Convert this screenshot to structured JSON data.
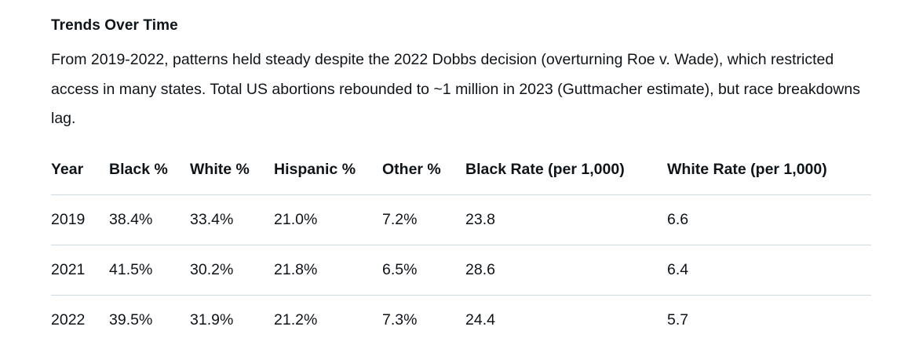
{
  "section": {
    "title": "Trends Over Time",
    "paragraph": "From 2019-2022, patterns held steady despite the 2022 Dobbs decision (overturning Roe v. Wade), which restricted access in many states. Total US abortions rebounded to ~1 million in 2023 (Guttmacher estimate), but race breakdowns lag."
  },
  "table": {
    "headers": [
      "Year",
      "Black %",
      "White %",
      "Hispanic %",
      "Other %",
      "Black Rate (per 1,000)",
      "White Rate (per 1,000)"
    ],
    "rows": [
      [
        "2019",
        "38.4%",
        "33.4%",
        "21.0%",
        "7.2%",
        "23.8",
        "6.6"
      ],
      [
        "2021",
        "41.5%",
        "30.2%",
        "21.8%",
        "6.5%",
        "28.6",
        "6.4"
      ],
      [
        "2022",
        "39.5%",
        "31.9%",
        "21.2%",
        "7.3%",
        "24.4",
        "5.7"
      ]
    ]
  }
}
